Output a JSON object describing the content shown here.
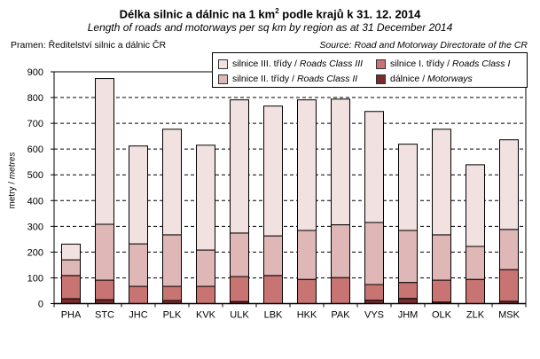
{
  "chart_data": {
    "type": "bar",
    "stacked": true,
    "title_parts": [
      "Délka silnic a dálnic na 1 km",
      "2",
      " podle krajů k 31. 12. 2014"
    ],
    "subtitle": "Length of roads and motorways per sq km by region as at 31 December 2014",
    "source_left": "Pramen: Ředitelství silnic a dálnic ČR",
    "source_right": "Source: Road and Motorway Directorate of the CR",
    "ylabel_cz": "metry / ",
    "ylabel_en": "metres",
    "ylim": [
      0,
      900
    ],
    "yticks": [
      "0",
      "100",
      "200",
      "300",
      "400",
      "500",
      "600",
      "700",
      "800",
      "900"
    ],
    "grid": true,
    "legend_position": "top-right",
    "categories": [
      "PHA",
      "STC",
      "JHC",
      "PLK",
      "KVK",
      "ULK",
      "LBK",
      "HKK",
      "PAK",
      "VYS",
      "JHM",
      "OLK",
      "ZLK",
      "MSK"
    ],
    "series": [
      {
        "name_cz": "dálnice / ",
        "name_en": "Motorways",
        "color": "#7b2b2b",
        "values": [
          19,
          15,
          0,
          12,
          0,
          8,
          0,
          0,
          0,
          13,
          20,
          6,
          0,
          9
        ]
      },
      {
        "name_cz": "silnice I. třídy / ",
        "name_en": "Roads Class I",
        "color": "#c87472",
        "values": [
          90,
          76,
          67,
          55,
          67,
          97,
          109,
          94,
          101,
          61,
          62,
          85,
          94,
          123
        ]
      },
      {
        "name_cz": "silnice II. třídy / ",
        "name_en": "Roads Class II",
        "color": "#dfb7b6",
        "values": [
          61,
          217,
          165,
          200,
          141,
          169,
          154,
          190,
          205,
          241,
          202,
          176,
          128,
          156
        ]
      },
      {
        "name_cz": "silnice III. třídy / ",
        "name_en": "Roads Class III",
        "color": "#f2e1e1",
        "values": [
          61,
          566,
          380,
          410,
          407,
          517,
          504,
          507,
          488,
          431,
          335,
          410,
          317,
          348
        ]
      }
    ]
  }
}
